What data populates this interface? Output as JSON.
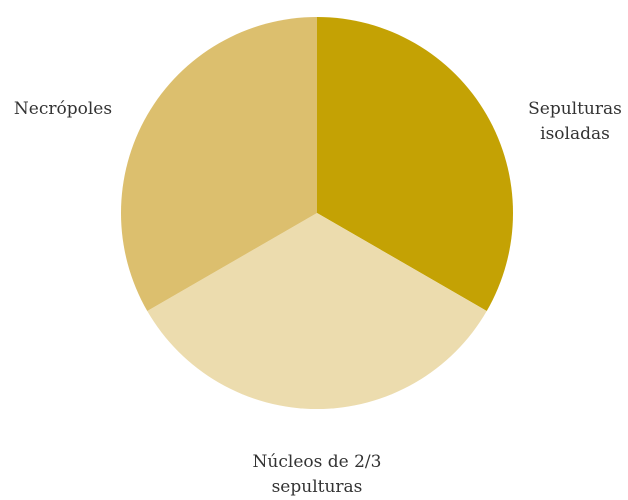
{
  "chart_data": {
    "type": "pie",
    "categories": [
      "Sepulturas isoladas",
      "Núcleos de 2/3 sepulturas",
      "Necrópoles"
    ],
    "values": [
      33.3,
      33.3,
      33.3
    ],
    "colors": [
      "#c4a204",
      "#ecdcae",
      "#dcbf6e"
    ]
  }
}
